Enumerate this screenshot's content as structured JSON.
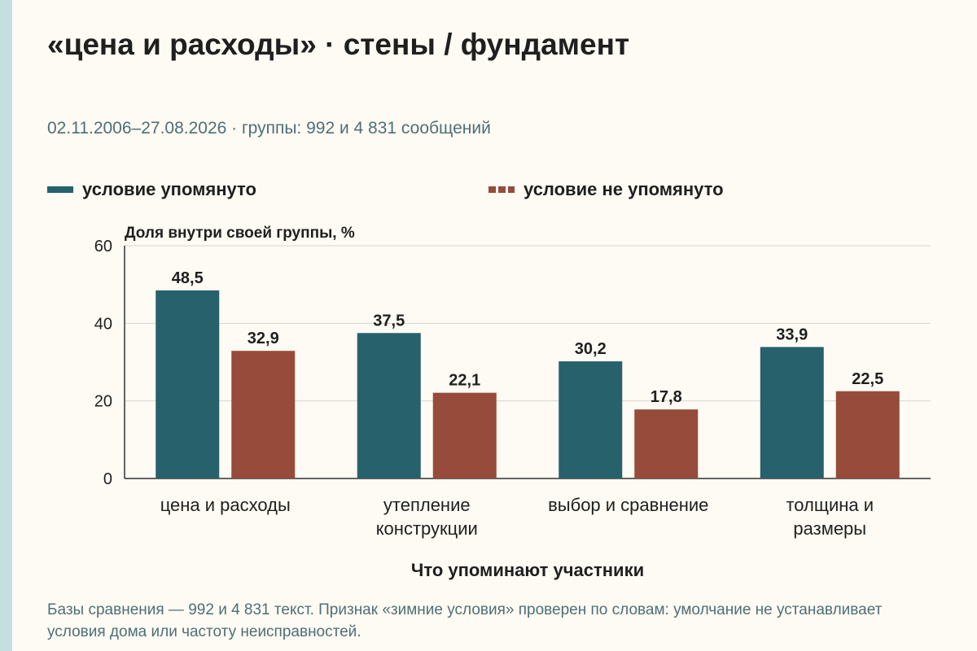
{
  "title": "«цена и расходы» · стены / фундамент",
  "subtitle": "02.11.2006–27.08.2026 · группы: 992 и 4 831 сообщений",
  "footnote": "Базы сравнения — 992 и 4 831 текст. Признак «зимние условия» проверен по словам: умолчание не устанавливает условия дома или частоту неисправностей.",
  "colors": {
    "background": "#fdfbf3",
    "stripe": "#c5dfe0",
    "grid": "#d6d6d6",
    "axis": "#333333"
  },
  "chart_data": {
    "type": "bar",
    "ylabel": "Доля внутри своей группы, %",
    "xlabel": "Что упоминают участники",
    "ylim": [
      0,
      60
    ],
    "yticks": [
      0,
      20,
      40,
      60
    ],
    "grid": true,
    "legend_position": "top",
    "categories": [
      [
        "цена и расходы"
      ],
      [
        "утепление",
        "конструкции"
      ],
      [
        "выбор и сравнение"
      ],
      [
        "толщина и",
        "размеры"
      ]
    ],
    "series": [
      {
        "name": "условие упомянуто",
        "color": "#26616c",
        "legend_style": "solid",
        "values": [
          48.5,
          37.5,
          30.2,
          33.9
        ],
        "labels": [
          "48,5",
          "37,5",
          "30,2",
          "33,9"
        ]
      },
      {
        "name": "условие не упомянуто",
        "color": "#974b3b",
        "legend_style": "dashed",
        "values": [
          32.9,
          22.1,
          17.8,
          22.5
        ],
        "labels": [
          "32,9",
          "22,1",
          "17,8",
          "22,5"
        ]
      }
    ]
  }
}
